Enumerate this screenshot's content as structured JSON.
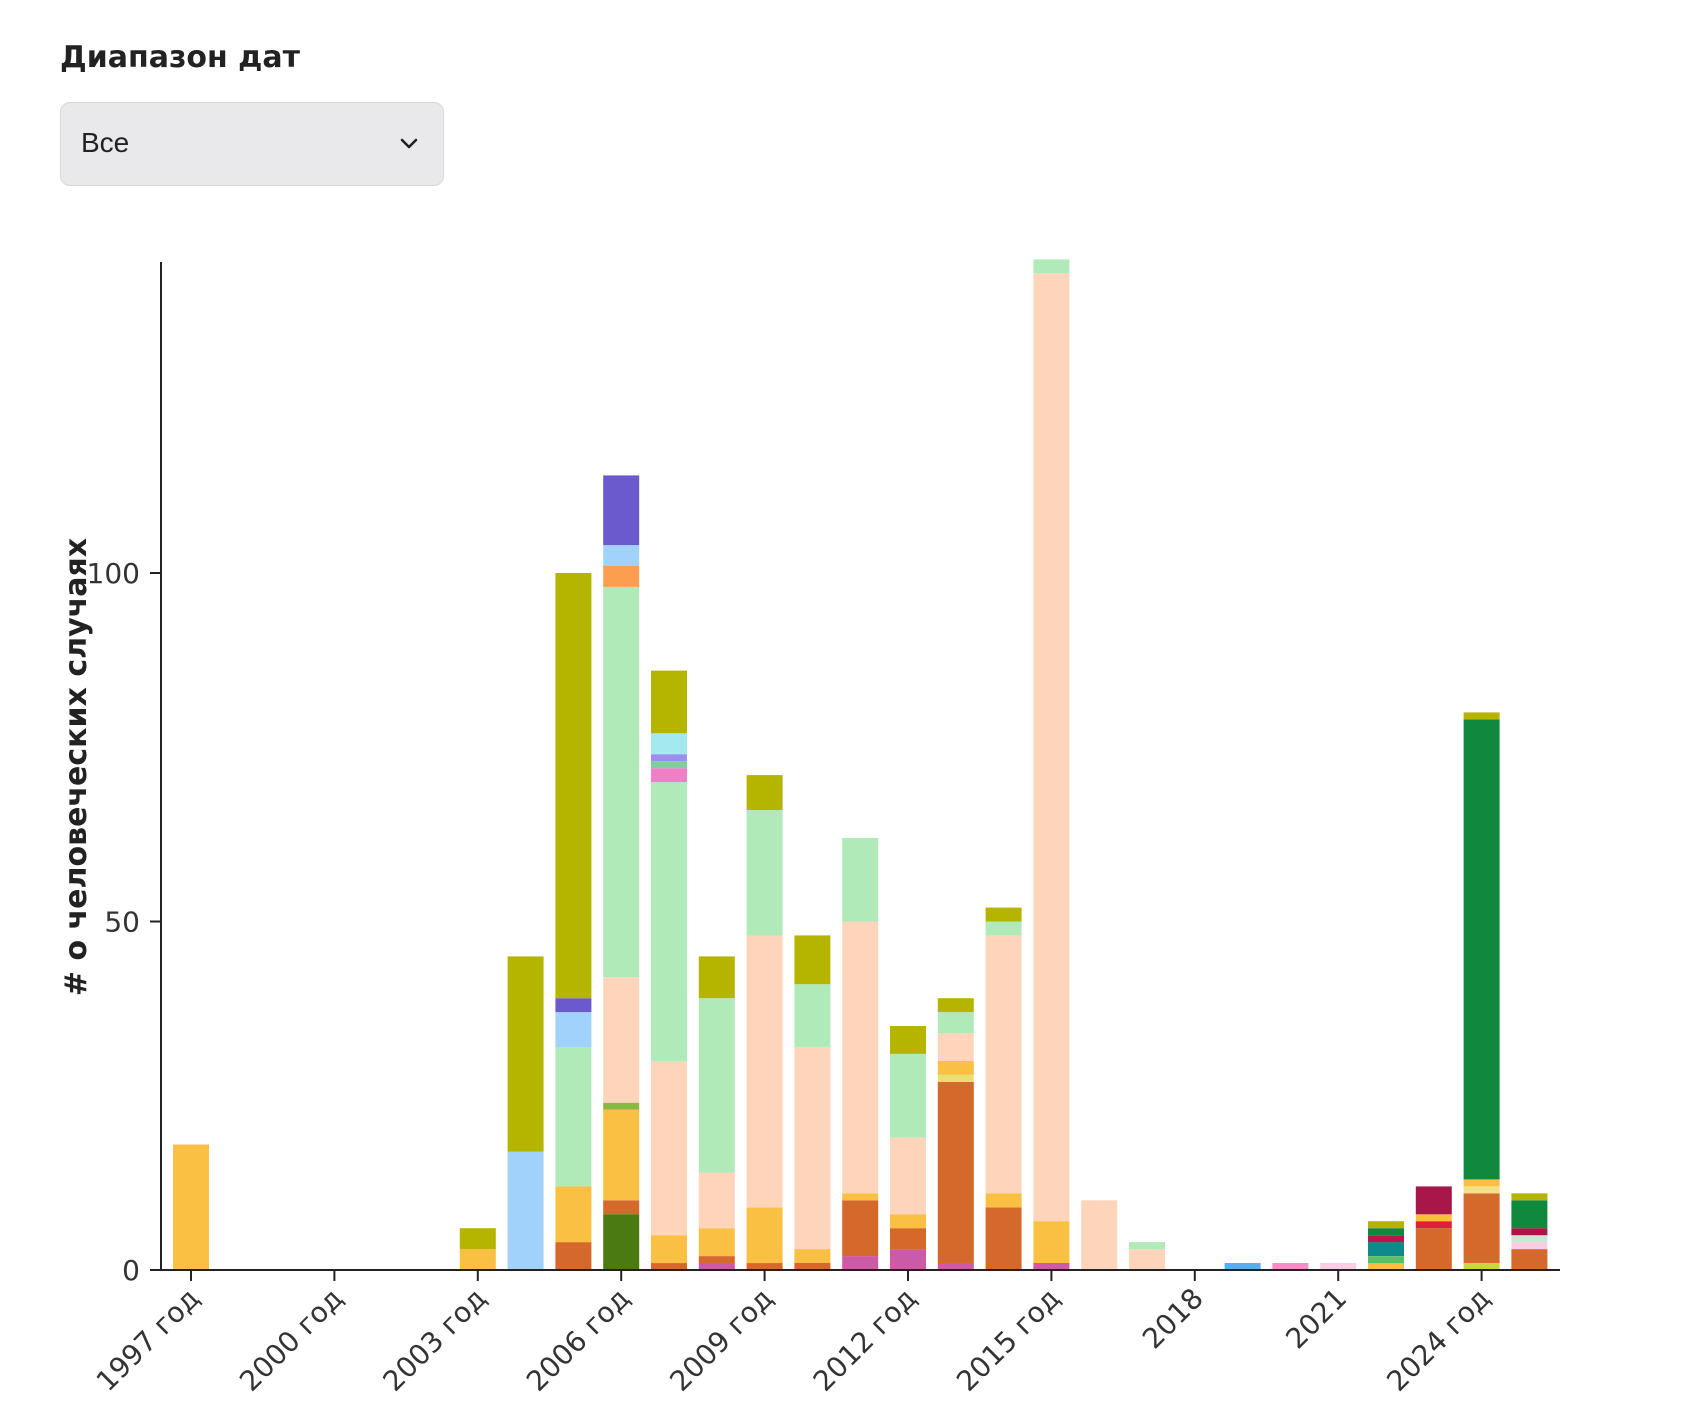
{
  "filter": {
    "label": "Диапазон дат",
    "selected": "Все"
  },
  "chart_data": {
    "type": "bar",
    "stacked": true,
    "ylabel": "# о человеческих случаях",
    "xlabel": "",
    "ylim": [
      0,
      145
    ],
    "yticks": [
      0,
      50,
      100
    ],
    "grid": false,
    "legend": "none",
    "x": [
      1997,
      1998,
      1999,
      2000,
      2001,
      2002,
      2003,
      2004,
      2005,
      2006,
      2007,
      2008,
      2009,
      2010,
      2011,
      2012,
      2013,
      2014,
      2015,
      2016,
      2017,
      2018,
      2019,
      2020,
      2021,
      2022,
      2023,
      2024,
      2025
    ],
    "xtick_values": [
      1997,
      2000,
      2003,
      2006,
      2009,
      2012,
      2015,
      2018,
      2021,
      2024
    ],
    "xtick_labels": [
      "1997 год",
      "2000 год",
      "2003 год",
      "2006 год",
      "2009 год",
      "2012 год",
      "2015 год",
      "2018",
      "2021",
      "2024 год"
    ],
    "bars": [
      {
        "x": 1997,
        "segments": [
          {
            "value": 18,
            "color": "#f9c043"
          }
        ]
      },
      {
        "x": 2003,
        "segments": [
          {
            "value": 3,
            "color": "#f9c043"
          },
          {
            "value": 3,
            "color": "#b5b500"
          }
        ]
      },
      {
        "x": 2004,
        "segments": [
          {
            "value": 17,
            "color": "#a1d2fb"
          },
          {
            "value": 28,
            "color": "#b5b500"
          }
        ]
      },
      {
        "x": 2005,
        "segments": [
          {
            "value": 4,
            "color": "#d4692b"
          },
          {
            "value": 8,
            "color": "#f9c043"
          },
          {
            "value": 20,
            "color": "#b0eab8"
          },
          {
            "value": 5,
            "color": "#a1d2fb"
          },
          {
            "value": 2,
            "color": "#6a5acd"
          },
          {
            "value": 61,
            "color": "#b5b500"
          }
        ]
      },
      {
        "x": 2006,
        "segments": [
          {
            "value": 8,
            "color": "#4c7a12"
          },
          {
            "value": 2,
            "color": "#d4692b"
          },
          {
            "value": 13,
            "color": "#f9c043"
          },
          {
            "value": 1,
            "color": "#8ab840"
          },
          {
            "value": 18,
            "color": "#fed5bb"
          },
          {
            "value": 56,
            "color": "#b0eab8"
          },
          {
            "value": 3,
            "color": "#fb9e4e"
          },
          {
            "value": 3,
            "color": "#a1d2fb"
          },
          {
            "value": 10,
            "color": "#6a5acd"
          }
        ]
      },
      {
        "x": 2007,
        "segments": [
          {
            "value": 1,
            "color": "#d4692b"
          },
          {
            "value": 4,
            "color": "#f9c043"
          },
          {
            "value": 25,
            "color": "#fed5bb"
          },
          {
            "value": 40,
            "color": "#b0eab8"
          },
          {
            "value": 2,
            "color": "#f07fc8"
          },
          {
            "value": 1,
            "color": "#7ecf9a"
          },
          {
            "value": 1,
            "color": "#9b8ef0"
          },
          {
            "value": 3,
            "color": "#a4e8f0"
          },
          {
            "value": 9,
            "color": "#b5b500"
          }
        ]
      },
      {
        "x": 2008,
        "segments": [
          {
            "value": 1,
            "color": "#cc5ba7"
          },
          {
            "value": 1,
            "color": "#d4692b"
          },
          {
            "value": 4,
            "color": "#f9c043"
          },
          {
            "value": 8,
            "color": "#fed5bb"
          },
          {
            "value": 25,
            "color": "#b0eab8"
          },
          {
            "value": 6,
            "color": "#b5b500"
          }
        ]
      },
      {
        "x": 2009,
        "segments": [
          {
            "value": 1,
            "color": "#d4692b"
          },
          {
            "value": 8,
            "color": "#f9c043"
          },
          {
            "value": 39,
            "color": "#fed5bb"
          },
          {
            "value": 18,
            "color": "#b0eab8"
          },
          {
            "value": 5,
            "color": "#b5b500"
          }
        ]
      },
      {
        "x": 2010,
        "segments": [
          {
            "value": 1,
            "color": "#d4692b"
          },
          {
            "value": 2,
            "color": "#f9c043"
          },
          {
            "value": 29,
            "color": "#fed5bb"
          },
          {
            "value": 9,
            "color": "#b0eab8"
          },
          {
            "value": 7,
            "color": "#b5b500"
          }
        ]
      },
      {
        "x": 2011,
        "segments": [
          {
            "value": 2,
            "color": "#cc5ba7"
          },
          {
            "value": 8,
            "color": "#d4692b"
          },
          {
            "value": 1,
            "color": "#f9c043"
          },
          {
            "value": 39,
            "color": "#fed5bb"
          },
          {
            "value": 12,
            "color": "#b0eab8"
          }
        ]
      },
      {
        "x": 2012,
        "segments": [
          {
            "value": 3,
            "color": "#cc5ba7"
          },
          {
            "value": 3,
            "color": "#d4692b"
          },
          {
            "value": 2,
            "color": "#f9c043"
          },
          {
            "value": 11,
            "color": "#fed5bb"
          },
          {
            "value": 12,
            "color": "#b0eab8"
          },
          {
            "value": 4,
            "color": "#b5b500"
          }
        ]
      },
      {
        "x": 2013,
        "segments": [
          {
            "value": 1,
            "color": "#cc5ba7"
          },
          {
            "value": 26,
            "color": "#d4692b"
          },
          {
            "value": 1,
            "color": "#e8e070"
          },
          {
            "value": 2,
            "color": "#f9c043"
          },
          {
            "value": 4,
            "color": "#fed5bb"
          },
          {
            "value": 3,
            "color": "#b0eab8"
          },
          {
            "value": 2,
            "color": "#b5b500"
          }
        ]
      },
      {
        "x": 2014,
        "segments": [
          {
            "value": 9,
            "color": "#d4692b"
          },
          {
            "value": 2,
            "color": "#f9c043"
          },
          {
            "value": 37,
            "color": "#fed5bb"
          },
          {
            "value": 2,
            "color": "#b0eab8"
          },
          {
            "value": 2,
            "color": "#b5b500"
          }
        ]
      },
      {
        "x": 2015,
        "segments": [
          {
            "value": 1,
            "color": "#cc5ba7"
          },
          {
            "value": 6,
            "color": "#f9c043"
          },
          {
            "value": 136,
            "color": "#fed5bb"
          },
          {
            "value": 2,
            "color": "#b0eab8"
          }
        ]
      },
      {
        "x": 2016,
        "segments": [
          {
            "value": 10,
            "color": "#fed5bb"
          }
        ]
      },
      {
        "x": 2017,
        "segments": [
          {
            "value": 3,
            "color": "#fed5bb"
          },
          {
            "value": 1,
            "color": "#b0eab8"
          }
        ]
      },
      {
        "x": 2019,
        "segments": [
          {
            "value": 1,
            "color": "#5aaee8"
          }
        ]
      },
      {
        "x": 2020,
        "segments": [
          {
            "value": 1,
            "color": "#f08fc8"
          }
        ]
      },
      {
        "x": 2021,
        "segments": [
          {
            "value": 1,
            "color": "#fbcde5"
          }
        ]
      },
      {
        "x": 2022,
        "segments": [
          {
            "value": 1,
            "color": "#f9c043"
          },
          {
            "value": 1,
            "color": "#55c26a"
          },
          {
            "value": 2,
            "color": "#0f8a8a"
          },
          {
            "value": 1,
            "color": "#c0134e"
          },
          {
            "value": 1,
            "color": "#10893f"
          },
          {
            "value": 1,
            "color": "#b5b500"
          }
        ]
      },
      {
        "x": 2023,
        "segments": [
          {
            "value": 6,
            "color": "#d4692b"
          },
          {
            "value": 1,
            "color": "#e0203a"
          },
          {
            "value": 1,
            "color": "#f9c043"
          },
          {
            "value": 4,
            "color": "#a8174a"
          }
        ]
      },
      {
        "x": 2024,
        "segments": [
          {
            "value": 1,
            "color": "#c8d83a"
          },
          {
            "value": 10,
            "color": "#d4692b"
          },
          {
            "value": 1,
            "color": "#f5e08a"
          },
          {
            "value": 1,
            "color": "#f9c043"
          },
          {
            "value": 66,
            "color": "#10893f"
          },
          {
            "value": 1,
            "color": "#b5b500"
          }
        ]
      },
      {
        "x": 2025,
        "segments": [
          {
            "value": 3,
            "color": "#d4692b"
          },
          {
            "value": 1,
            "color": "#fbcde5"
          },
          {
            "value": 1,
            "color": "#c9e8d2"
          },
          {
            "value": 1,
            "color": "#a8174a"
          },
          {
            "value": 4,
            "color": "#10893f"
          },
          {
            "value": 1,
            "color": "#b5b500"
          }
        ]
      }
    ]
  }
}
